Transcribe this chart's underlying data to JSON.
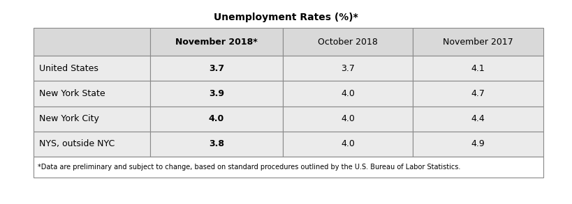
{
  "title": "Unemployment Rates (%)*",
  "columns": [
    "",
    "November 2018*",
    "October 2018",
    "November 2017"
  ],
  "rows": [
    [
      "United States",
      "3.7",
      "3.7",
      "4.1"
    ],
    [
      "New York State",
      "3.9",
      "4.0",
      "4.7"
    ],
    [
      "New York City",
      "4.0",
      "4.0",
      "4.4"
    ],
    [
      "NYS, outside NYC",
      "3.8",
      "4.0",
      "4.9"
    ]
  ],
  "footnote": "*Data are preliminary and subject to change, based on standard procedures outlined by the U.S. Bureau of Labor Statistics.",
  "header_bg": "#d9d9d9",
  "row_bg": "#ebebeb",
  "white_bg": "#ffffff",
  "border_color": "#888888",
  "text_color": "#000000",
  "title_fontsize": 10,
  "header_fontsize": 9,
  "cell_fontsize": 9,
  "footnote_fontsize": 7
}
